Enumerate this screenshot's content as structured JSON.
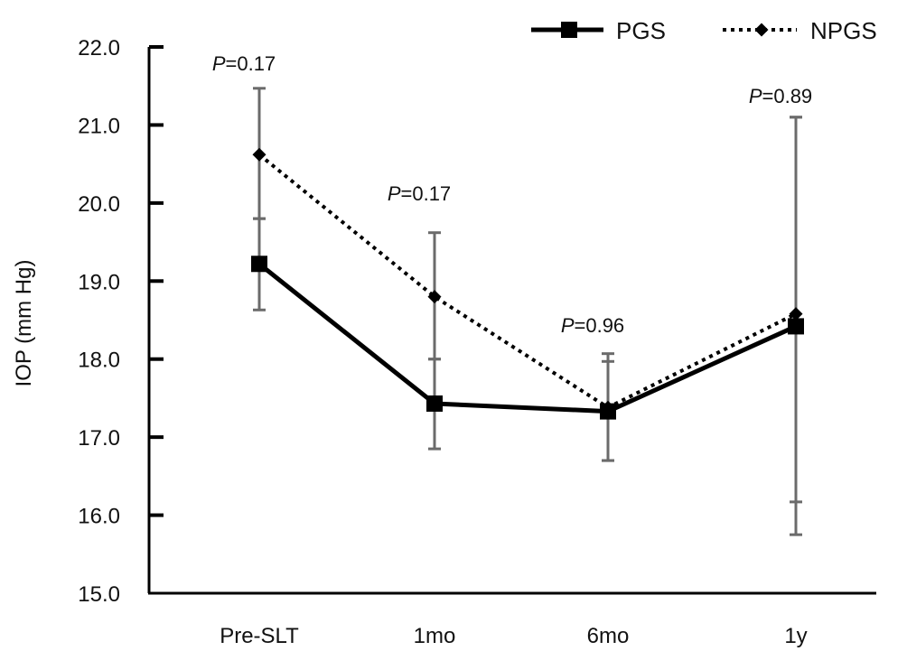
{
  "chart_data": {
    "type": "line",
    "ylabel": "IOP (mm Hg)",
    "categories": [
      "Pre-SLT",
      "1mo",
      "6mo",
      "1y"
    ],
    "ylim": [
      15.0,
      22.0
    ],
    "yticks": [
      "15.0",
      "16.0",
      "17.0",
      "18.0",
      "19.0",
      "20.0",
      "21.0",
      "22.0"
    ],
    "grid": false,
    "legend_position": "top-right",
    "series": [
      {
        "name": "PGS",
        "style": "solid",
        "marker": "square",
        "color": "#000000",
        "values": [
          19.22,
          17.43,
          17.33,
          18.42
        ],
        "error_low": [
          18.63,
          16.85,
          16.7,
          15.75
        ],
        "error_high": [
          19.8,
          18.0,
          17.97,
          21.1
        ]
      },
      {
        "name": "NPGS",
        "style": "dotted",
        "marker": "diamond",
        "color": "#000000",
        "values": [
          20.62,
          18.8,
          17.38,
          18.58
        ],
        "error_low": [
          19.8,
          18.0,
          16.7,
          16.17
        ],
        "error_high": [
          21.47,
          19.62,
          18.07,
          21.1
        ]
      }
    ],
    "annotations": [
      {
        "category": "Pre-SLT",
        "italic": "P",
        "text": "=0.17"
      },
      {
        "category": "1mo",
        "italic": "P",
        "text": "=0.17"
      },
      {
        "category": "6mo",
        "italic": "P",
        "text": "=0.96"
      },
      {
        "category": "1y",
        "italic": "P",
        "text": "=0.89"
      }
    ],
    "colors": {
      "line": "#000000",
      "error_bar": "#6b6b6b",
      "axis": "#000000"
    }
  }
}
